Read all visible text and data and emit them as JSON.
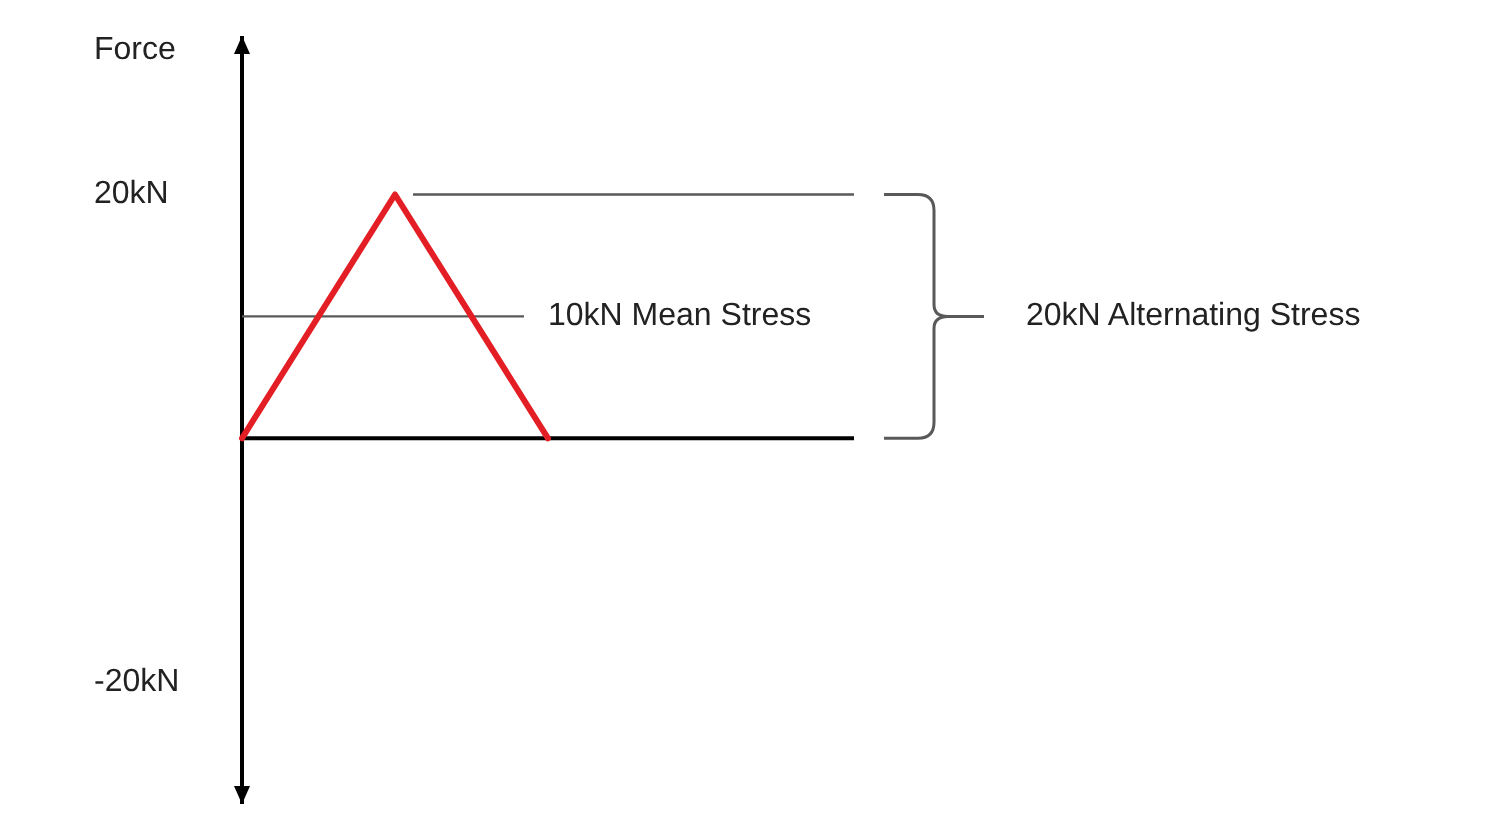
{
  "chart_data": {
    "type": "line",
    "ylabel": "Force",
    "categories": [
      null,
      null,
      null,
      null,
      null
    ],
    "series": [
      {
        "color": "#e31e24",
        "values": [
          0,
          20,
          0,
          null,
          null
        ]
      }
    ],
    "ylim": [
      -30,
      33
    ],
    "yticks": [
      {
        "value": 20,
        "label": "20kN"
      },
      {
        "value": -20,
        "label": "-20kN"
      }
    ],
    "tick_labels": "y",
    "marker": "none",
    "ref_lines": [
      {
        "axis": "y",
        "value": 20,
        "color": "#595959"
      },
      {
        "axis": "y",
        "value": 10,
        "label": "10kN Mean Stress",
        "color": "#595959"
      }
    ],
    "annotations": [
      "20kN Alternating Stress"
    ]
  }
}
